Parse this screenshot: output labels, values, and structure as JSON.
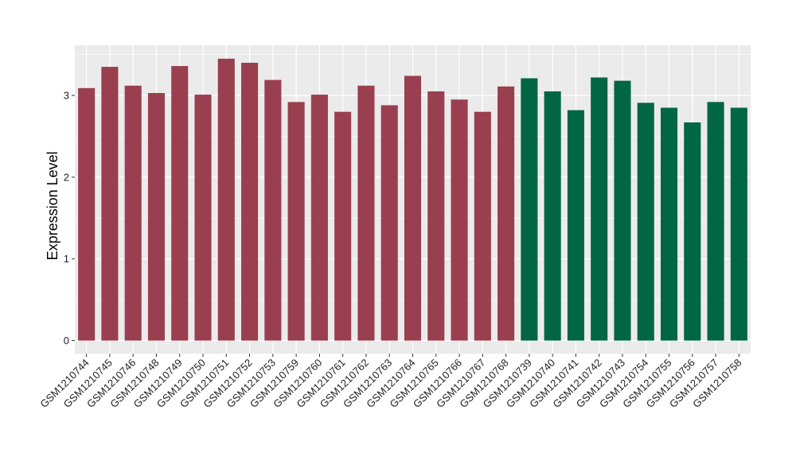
{
  "chart_data": {
    "type": "bar",
    "title": "",
    "xlabel": "",
    "ylabel": "Expression Level",
    "ylim": [
      0,
      3.6
    ],
    "yticks": [
      0,
      1,
      2,
      3
    ],
    "grid": true,
    "categories": [
      "GSM1210744",
      "GSM1210745",
      "GSM1210746",
      "GSM1210748",
      "GSM1210749",
      "GSM1210750",
      "GSM1210751",
      "GSM1210752",
      "GSM1210753",
      "GSM1210759",
      "GSM1210760",
      "GSM1210761",
      "GSM1210762",
      "GSM1210763",
      "GSM1210764",
      "GSM1210765",
      "GSM1210766",
      "GSM1210767",
      "GSM1210768",
      "GSM1210739",
      "GSM1210740",
      "GSM1210741",
      "GSM1210742",
      "GSM1210743",
      "GSM1210754",
      "GSM1210755",
      "GSM1210756",
      "GSM1210757",
      "GSM1210758"
    ],
    "values": [
      3.09,
      3.35,
      3.12,
      3.03,
      3.36,
      3.01,
      3.45,
      3.4,
      3.19,
      2.92,
      3.01,
      2.8,
      3.12,
      2.88,
      3.24,
      3.05,
      2.95,
      2.8,
      3.11,
      3.21,
      3.05,
      2.82,
      3.22,
      3.18,
      2.91,
      2.85,
      2.67,
      2.92,
      2.85
    ],
    "groups": [
      0,
      0,
      0,
      0,
      0,
      0,
      0,
      0,
      0,
      0,
      0,
      0,
      0,
      0,
      0,
      0,
      0,
      0,
      0,
      1,
      1,
      1,
      1,
      1,
      1,
      1,
      1,
      1,
      1
    ],
    "colors": [
      "#9a3f4f",
      "#006644"
    ],
    "panel_background": "#ebebeb",
    "grid_color": "#ffffff"
  }
}
